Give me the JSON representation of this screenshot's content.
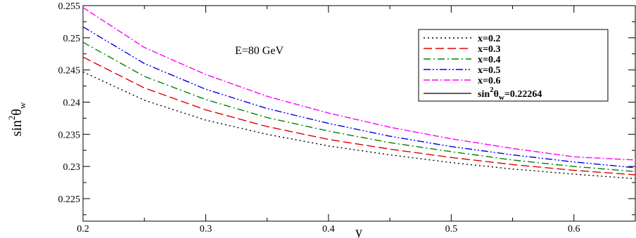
{
  "chart_data": {
    "type": "line",
    "annotation": "E=80 GeV",
    "xlabel": "y",
    "ylabel": {
      "prefix": "sin",
      "sup": "2",
      "symbol": "θ",
      "sub": "w"
    },
    "xlim": [
      0.2,
      0.65
    ],
    "ylim": [
      0.2215,
      0.255
    ],
    "x_ticks": [
      0.2,
      0.3,
      0.4,
      0.5,
      0.6
    ],
    "x_tick_labels": [
      "0.2",
      "0.3",
      "0.4",
      "0.5",
      "0.6"
    ],
    "y_ticks": [
      0.225,
      0.23,
      0.235,
      0.24,
      0.245,
      0.25,
      0.255
    ],
    "y_tick_labels": [
      "0.225",
      "0.23",
      "0.235",
      "0.24",
      "0.245",
      "0.25",
      "0.255"
    ],
    "grid": false,
    "legend_position": "top-right",
    "x": [
      0.2,
      0.25,
      0.3,
      0.35,
      0.4,
      0.45,
      0.5,
      0.55,
      0.6,
      0.65
    ],
    "series": [
      {
        "name": "x=0.2",
        "color": "#000000",
        "dash": "dotted",
        "values": [
          0.2447,
          0.2403,
          0.2372,
          0.235,
          0.2332,
          0.2318,
          0.2306,
          0.2296,
          0.2288,
          0.2281
        ]
      },
      {
        "name": "x=0.3",
        "color": "#e00000",
        "dash": "dashed",
        "values": [
          0.247,
          0.2422,
          0.2388,
          0.2362,
          0.2342,
          0.2327,
          0.2314,
          0.2303,
          0.2294,
          0.2287
        ]
      },
      {
        "name": "x=0.4",
        "color": "#008000",
        "dash": "dash-dot",
        "values": [
          0.2493,
          0.244,
          0.2404,
          0.2376,
          0.2355,
          0.2337,
          0.2323,
          0.231,
          0.23,
          0.2292
        ]
      },
      {
        "name": "x=0.5",
        "color": "#0000ee",
        "dash": "dash-dot-dot",
        "values": [
          0.2517,
          0.246,
          0.242,
          0.239,
          0.2367,
          0.2347,
          0.2331,
          0.2318,
          0.2307,
          0.2298
        ]
      },
      {
        "name": "x=0.6",
        "color": "#ff00ff",
        "dash": "dash-dash-dot",
        "values": [
          0.2547,
          0.2485,
          0.2443,
          0.2409,
          0.2383,
          0.2361,
          0.2343,
          0.2328,
          0.2315,
          0.231
        ]
      }
    ],
    "reference_line": {
      "label": {
        "prefix": "sin",
        "sup": "2",
        "symbol": "θ",
        "sub": "w",
        "suffix": "=0.22264"
      },
      "value": 0.22264,
      "color": "#000000"
    }
  }
}
